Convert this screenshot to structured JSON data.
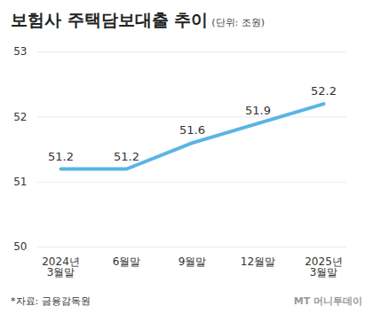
{
  "chart_data": {
    "type": "line",
    "title": "보험사 주택담보대출 추이",
    "subtitle": "(단위: 조원)",
    "categories": [
      "2024년\n3월말",
      "6월말",
      "9월말",
      "12월말",
      "2025년\n3월말"
    ],
    "values": [
      51.2,
      51.2,
      51.6,
      51.9,
      52.2
    ],
    "color": "#5ab4e5",
    "ylim": [
      50,
      53
    ],
    "yticks": [
      50,
      51,
      52,
      53
    ],
    "grid": true,
    "data_labels": true,
    "source": "*자료: 금융감독원",
    "credit": "MT 머니투데이"
  }
}
